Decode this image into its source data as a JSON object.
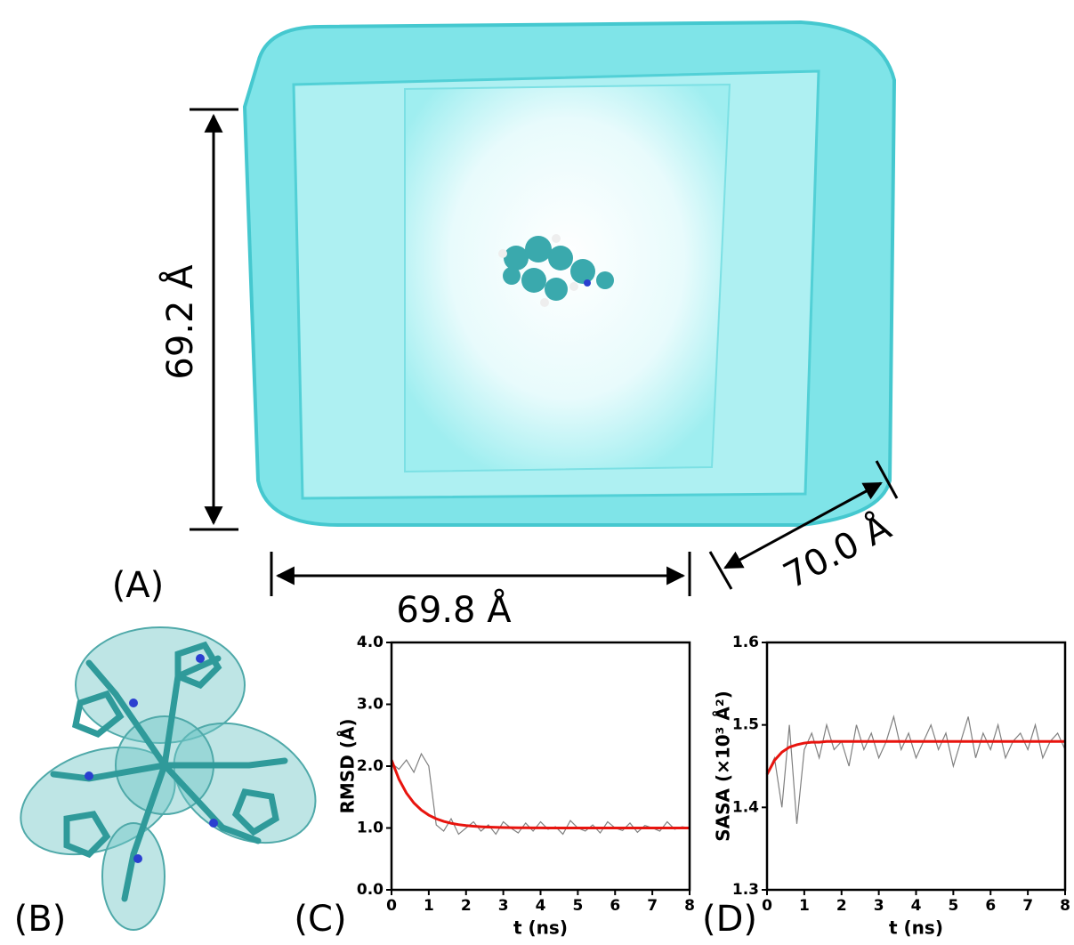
{
  "figure": {
    "panel_labels": [
      "(A)",
      "(B)",
      "(C)",
      "(D)"
    ],
    "box_dimensions": [
      "69.2 Å",
      "69.8 Å",
      "70.0 Å"
    ]
  },
  "chart_data": [
    {
      "type": "line",
      "xlabel": "t (ns)",
      "ylabel": "RMSD (Å)",
      "x": [
        0,
        0.2,
        0.4,
        0.6,
        0.8,
        1.0,
        1.2,
        1.4,
        1.6,
        1.8,
        2.0,
        2.2,
        2.4,
        2.6,
        2.8,
        3.0,
        3.2,
        3.4,
        3.6,
        3.8,
        4.0,
        4.2,
        4.4,
        4.6,
        4.8,
        5.0,
        5.2,
        5.4,
        5.6,
        5.8,
        6.0,
        6.2,
        6.4,
        6.6,
        6.8,
        7.0,
        7.2,
        7.4,
        7.6,
        7.8,
        8.0
      ],
      "xlim": [
        0,
        8
      ],
      "xticks": [
        0,
        1,
        2,
        3,
        4,
        5,
        6,
        7,
        8
      ],
      "ylim": [
        0,
        4
      ],
      "yticks": [
        {
          "value": 0,
          "label": "0.0"
        },
        {
          "value": 1,
          "label": "1.0"
        },
        {
          "value": 2,
          "label": "2.0"
        },
        {
          "value": 3,
          "label": "3.0"
        },
        {
          "value": 4,
          "label": "4.0"
        }
      ],
      "series": [
        {
          "color": "#808080",
          "values": [
            2.05,
            1.95,
            2.1,
            1.9,
            2.2,
            2.0,
            1.05,
            0.95,
            1.15,
            0.9,
            1.0,
            1.1,
            0.95,
            1.05,
            0.9,
            1.1,
            1.0,
            0.92,
            1.08,
            0.95,
            1.1,
            0.98,
            1.02,
            0.9,
            1.12,
            1.0,
            0.95,
            1.05,
            0.92,
            1.1,
            1.0,
            0.96,
            1.08,
            0.93,
            1.04,
            1.0,
            0.95,
            1.1,
            0.98,
            1.02,
            1.0
          ]
        },
        {
          "color": "#e8140e",
          "values": [
            2.1,
            1.788,
            1.565,
            1.405,
            1.29,
            1.208,
            1.149,
            1.107,
            1.076,
            1.055,
            1.039,
            1.028,
            1.02,
            1.014,
            1.01,
            1.007,
            1.005,
            1.004,
            1.003,
            1.002,
            1.001,
            1.0,
            1.0,
            1.0,
            1.0,
            1.0,
            1.0,
            1.0,
            1.0,
            1.0,
            1.0,
            1.0,
            1.0,
            1.0,
            1.0,
            1.0,
            1.0,
            1.0,
            1.0,
            1.0,
            1.0
          ]
        }
      ]
    },
    {
      "type": "line",
      "xlabel": "t (ns)",
      "ylabel": "SASA (×10³ Å²)",
      "x": [
        0,
        0.2,
        0.4,
        0.6,
        0.8,
        1.0,
        1.2,
        1.4,
        1.6,
        1.8,
        2.0,
        2.2,
        2.4,
        2.6,
        2.8,
        3.0,
        3.2,
        3.4,
        3.6,
        3.8,
        4.0,
        4.2,
        4.4,
        4.6,
        4.8,
        5.0,
        5.2,
        5.4,
        5.6,
        5.8,
        6.0,
        6.2,
        6.4,
        6.6,
        6.8,
        7.0,
        7.2,
        7.4,
        7.6,
        7.8,
        8.0
      ],
      "xlim": [
        0,
        8
      ],
      "xticks": [
        0,
        1,
        2,
        3,
        4,
        5,
        6,
        7,
        8
      ],
      "ylim": [
        1.3,
        1.6
      ],
      "yticks": [
        1.3,
        1.4,
        1.5,
        1.6
      ],
      "series": [
        {
          "color": "#808080",
          "values": [
            1.44,
            1.46,
            1.4,
            1.5,
            1.38,
            1.47,
            1.49,
            1.46,
            1.5,
            1.47,
            1.48,
            1.45,
            1.5,
            1.47,
            1.49,
            1.46,
            1.48,
            1.51,
            1.47,
            1.49,
            1.46,
            1.48,
            1.5,
            1.47,
            1.49,
            1.45,
            1.48,
            1.51,
            1.46,
            1.49,
            1.47,
            1.5,
            1.46,
            1.48,
            1.49,
            1.47,
            1.5,
            1.46,
            1.48,
            1.49,
            1.47
          ]
        },
        {
          "color": "#e8140e",
          "values": [
            1.44,
            1.457,
            1.467,
            1.473,
            1.476,
            1.478,
            1.479,
            1.479,
            1.48,
            1.48,
            1.48,
            1.48,
            1.48,
            1.48,
            1.48,
            1.48,
            1.48,
            1.48,
            1.48,
            1.48,
            1.48,
            1.48,
            1.48,
            1.48,
            1.48,
            1.48,
            1.48,
            1.48,
            1.48,
            1.48,
            1.48,
            1.48,
            1.48,
            1.48,
            1.48,
            1.48,
            1.48,
            1.48,
            1.48,
            1.48,
            1.48
          ]
        }
      ]
    }
  ]
}
